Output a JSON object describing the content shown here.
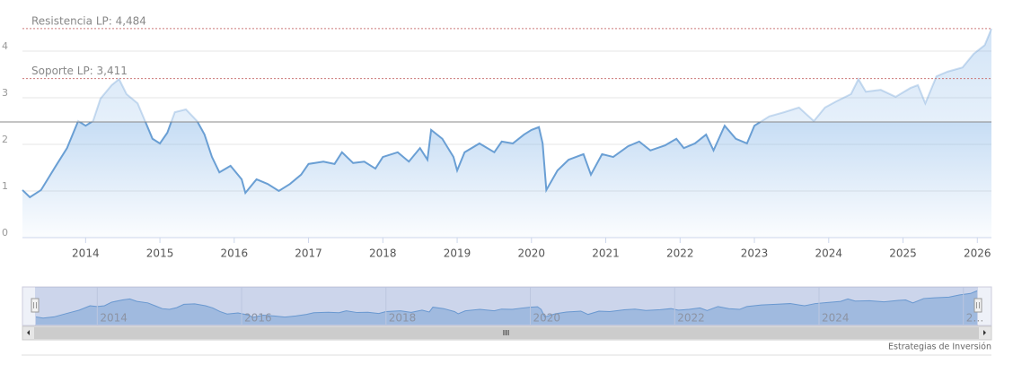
{
  "chart_data": {
    "type": "area",
    "x": [
      2013.15,
      2013.25,
      2013.4,
      2013.6,
      2013.75,
      2013.9,
      2014.0,
      2014.1,
      2014.2,
      2014.35,
      2014.45,
      2014.55,
      2014.7,
      2014.8,
      2014.9,
      2015.0,
      2015.1,
      2015.2,
      2015.35,
      2015.5,
      2015.6,
      2015.7,
      2015.8,
      2015.95,
      2016.1,
      2016.15,
      2016.3,
      2016.45,
      2016.6,
      2016.75,
      2016.9,
      2017.0,
      2017.2,
      2017.35,
      2017.45,
      2017.6,
      2017.75,
      2017.9,
      2018.0,
      2018.2,
      2018.35,
      2018.5,
      2018.6,
      2018.65,
      2018.8,
      2018.95,
      2019.0,
      2019.1,
      2019.3,
      2019.5,
      2019.6,
      2019.75,
      2019.9,
      2020.0,
      2020.1,
      2020.15,
      2020.2,
      2020.35,
      2020.5,
      2020.7,
      2020.8,
      2020.95,
      2021.1,
      2021.3,
      2021.45,
      2021.6,
      2021.8,
      2021.95,
      2022.05,
      2022.2,
      2022.35,
      2022.45,
      2022.6,
      2022.75,
      2022.9,
      2023.0,
      2023.2,
      2023.4,
      2023.6,
      2023.8,
      2023.95,
      2024.1,
      2024.3,
      2024.4,
      2024.5,
      2024.7,
      2024.9,
      2025.1,
      2025.2,
      2025.3,
      2025.45,
      2025.6,
      2025.8,
      2025.95,
      2026.1,
      2026.19
    ],
    "series": [
      {
        "color": "#6a9fd4",
        "values": [
          1020,
          865,
          1020,
          1540,
          1920,
          2500,
          2400,
          2500,
          2980,
          3270,
          3400,
          3080,
          2880,
          2500,
          2120,
          2020,
          2250,
          2690,
          2750,
          2500,
          2210,
          1730,
          1400,
          1540,
          1250,
          960,
          1250,
          1150,
          1000,
          1150,
          1350,
          1580,
          1630,
          1580,
          1830,
          1600,
          1630,
          1480,
          1730,
          1830,
          1630,
          1920,
          1670,
          2310,
          2120,
          1730,
          1440,
          1830,
          2020,
          1830,
          2060,
          2020,
          2210,
          2310,
          2370,
          2020,
          1020,
          1440,
          1670,
          1790,
          1350,
          1790,
          1730,
          1960,
          2060,
          1870,
          1980,
          2120,
          1920,
          2020,
          2210,
          1870,
          2400,
          2120,
          2020,
          2400,
          2600,
          2690,
          2790,
          2500,
          2790,
          2920,
          3080,
          3400,
          3130,
          3170,
          3020,
          3210,
          3270,
          2880,
          3460,
          3560,
          3650,
          3940,
          4130,
          4480
        ]
      }
    ],
    "xlim": [
      2013.15,
      2026.19
    ],
    "xticks": [
      2014,
      2015,
      2016,
      2017,
      2018,
      2019,
      2020,
      2021,
      2022,
      2023,
      2024,
      2025,
      2026
    ],
    "ylim": [
      0,
      5000
    ],
    "yticks": [
      {
        "value": 0,
        "label": "0"
      },
      {
        "value": 1000,
        "label": "1"
      },
      {
        "value": 2000,
        "label": "2"
      },
      {
        "value": 3000,
        "label": "3"
      },
      {
        "value": 4000,
        "label": "4"
      }
    ],
    "threshold": 2480,
    "plot_lines": [
      {
        "label": "Resistencia LP: 4,484",
        "value": 4484
      },
      {
        "label": "Soporte LP: 3,411",
        "value": 3411
      }
    ],
    "navigator_ticks": [
      2014,
      2016,
      2018,
      2020,
      2022,
      2024,
      {
        "value": 2026,
        "label": "2…"
      }
    ],
    "credit": "Estrategias de Inversión",
    "grid": true
  }
}
